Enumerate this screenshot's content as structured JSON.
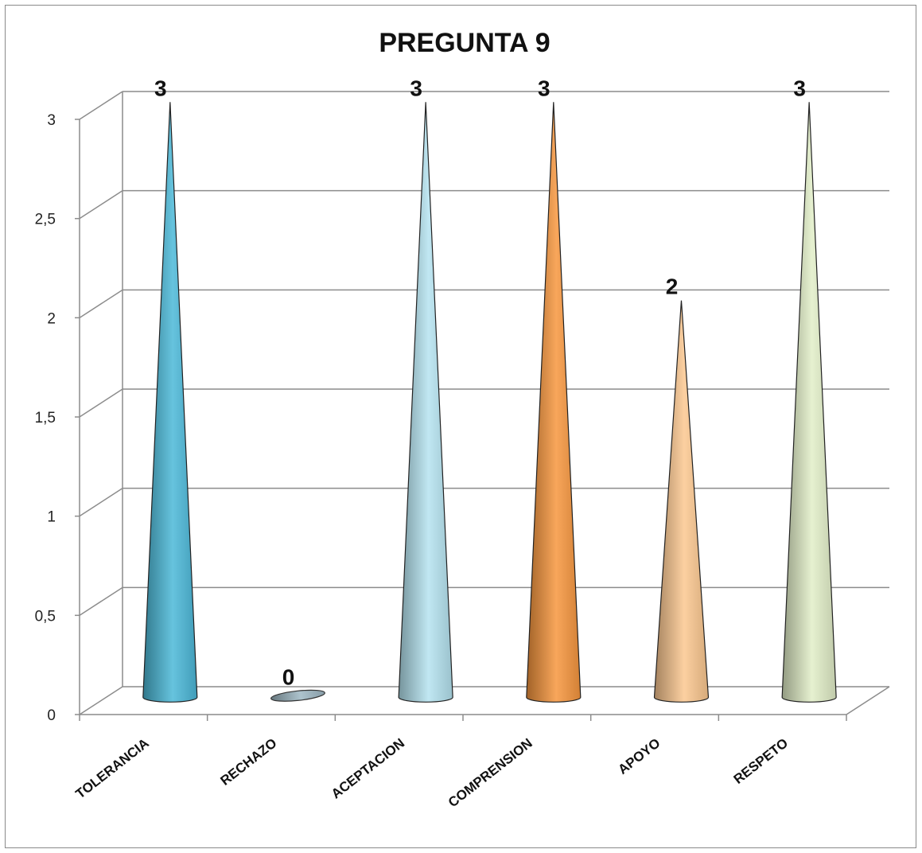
{
  "chart_data": {
    "type": "bar",
    "style": "3d-cone",
    "title": "PREGUNTA 9",
    "categories": [
      "TOLERANCIA",
      "RECHAZO",
      "ACEPTACION",
      "COMPRENSION",
      "APOYO",
      "RESPETO"
    ],
    "values": [
      3,
      0,
      3,
      3,
      2,
      3
    ],
    "data_labels": [
      "3",
      "0",
      "3",
      "3",
      "2",
      "3"
    ],
    "ylim": [
      0,
      3
    ],
    "yticks": [
      "0",
      "0,5",
      "1",
      "1,5",
      "2",
      "2,5",
      "3"
    ],
    "grid": true,
    "legend": "none",
    "colors": [
      "#4bb8d8",
      "#9fb8c4",
      "#b5e3f0",
      "#f7963e",
      "#fcc890",
      "#e2eec8"
    ]
  }
}
